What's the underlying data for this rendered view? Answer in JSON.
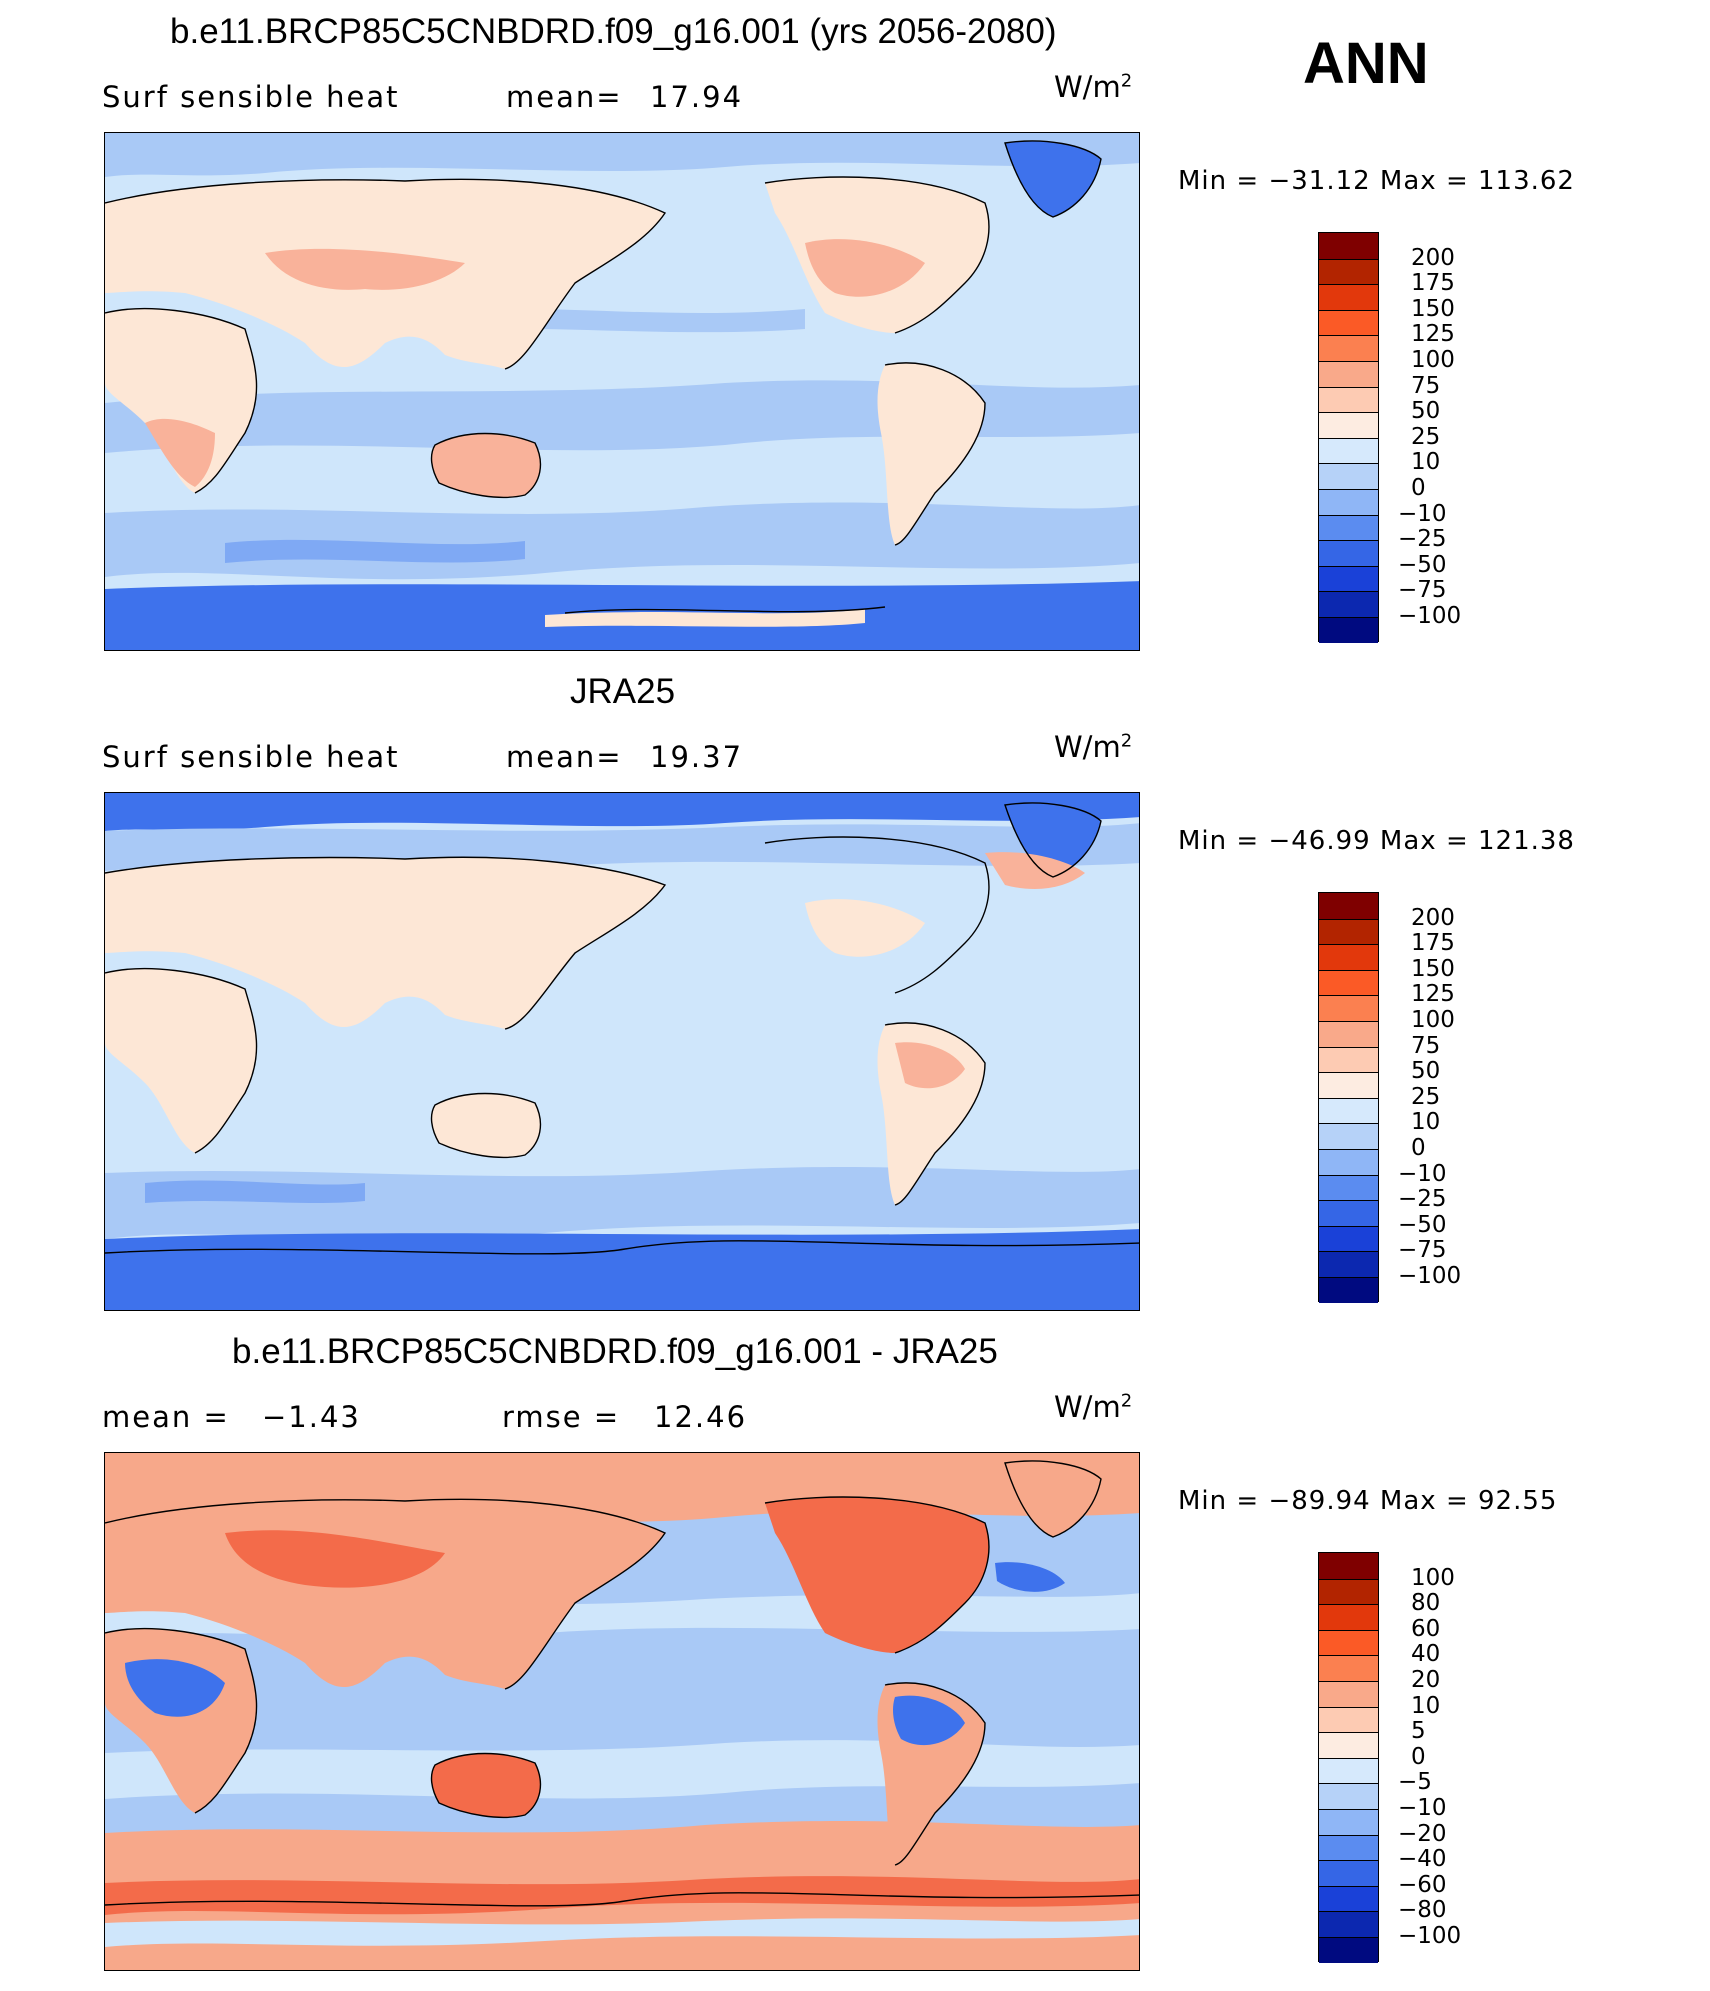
{
  "header": {
    "season": "ANN"
  },
  "colors": {
    "ocean_cool": "#cfe6fb",
    "ocean_mid": "#a9c9f6",
    "ocean_cold": "#7fa9f4",
    "ice": "#3e72ec",
    "land_warm": "#fde7d6",
    "land_hot": "#f9b29a",
    "diff_warm": "#f7a88a",
    "diff_hot": "#f36b4a",
    "diff_cold": "#3e72ec"
  },
  "panels": [
    {
      "title": "b.e11.BRCP85C5CNBDRD.f09_g16.001 (yrs 2056-2080)",
      "left_label": "Surf  sensible  heat",
      "stat_label": "mean=",
      "stat_value": "17.94",
      "units_base": "W/m",
      "units_exp": "2",
      "minmax": "Min  =  −31.12  Max  =  113.62",
      "colorbar": {
        "colors": [
          "#7f0000",
          "#b22400",
          "#e2380c",
          "#fb5a26",
          "#fb8050",
          "#f9a98a",
          "#fdcbb3",
          "#fdece1",
          "#d6e9fc",
          "#b6d2f8",
          "#8fb6f6",
          "#5b8cf0",
          "#3566e6",
          "#1a41d8",
          "#0c28b0",
          "#000a80"
        ],
        "labels": [
          "200",
          "175",
          "150",
          "125",
          "100",
          "75",
          "50",
          "25",
          "10",
          "0",
          "−10",
          "−25",
          "−50",
          "−75",
          "−100"
        ]
      }
    },
    {
      "title": "JRA25",
      "left_label": "Surf  sensible  heat",
      "stat_label": "mean=",
      "stat_value": "19.37",
      "units_base": "W/m",
      "units_exp": "2",
      "minmax": "Min  =  −46.99  Max  =  121.38",
      "colorbar": {
        "colors": [
          "#7f0000",
          "#b22400",
          "#e2380c",
          "#fb5a26",
          "#fb8050",
          "#f9a98a",
          "#fdcbb3",
          "#fdece1",
          "#d6e9fc",
          "#b6d2f8",
          "#8fb6f6",
          "#5b8cf0",
          "#3566e6",
          "#1a41d8",
          "#0c28b0",
          "#000a80"
        ],
        "labels": [
          "200",
          "175",
          "150",
          "125",
          "100",
          "75",
          "50",
          "25",
          "10",
          "0",
          "−10",
          "−25",
          "−50",
          "−75",
          "−100"
        ]
      }
    },
    {
      "title": "b.e11.BRCP85C5CNBDRD.f09_g16.001 - JRA25",
      "left_label": "mean  =",
      "left_value": "−1.43",
      "stat_label": "rmse  =",
      "stat_value": "12.46",
      "units_base": "W/m",
      "units_exp": "2",
      "minmax": "Min  =  −89.94  Max  =    92.55",
      "colorbar": {
        "colors": [
          "#7f0000",
          "#b22400",
          "#e2380c",
          "#fb5a26",
          "#fb8050",
          "#f9a98a",
          "#fdcbb3",
          "#fdece1",
          "#d6e9fc",
          "#b6d2f8",
          "#8fb6f6",
          "#5b8cf0",
          "#3566e6",
          "#1a41d8",
          "#0c28b0",
          "#000a80"
        ],
        "labels": [
          "100",
          "80",
          "60",
          "40",
          "20",
          "10",
          "5",
          "0",
          "−5",
          "−10",
          "−20",
          "−40",
          "−60",
          "−80",
          "−100"
        ]
      }
    }
  ]
}
